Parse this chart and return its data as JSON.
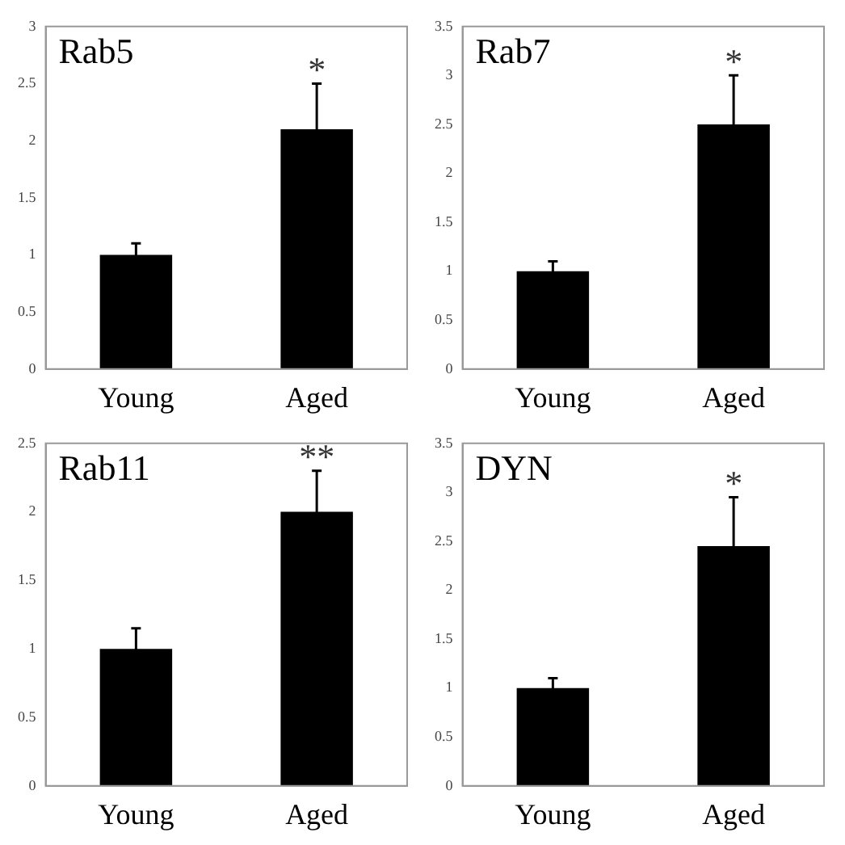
{
  "chart_data": [
    {
      "type": "bar",
      "title": "Rab5",
      "categories": [
        "Young",
        "Aged"
      ],
      "values": [
        1,
        2.1
      ],
      "errors": [
        0.1,
        0.4
      ],
      "color": "#000000",
      "ylim": [
        0,
        3
      ],
      "yticks": [
        0,
        0.5,
        1,
        1.5,
        2,
        2.5,
        3
      ],
      "grid": false,
      "legend": false,
      "annotations": [
        {
          "text": "*",
          "x": "Aged",
          "y": 2.5
        }
      ]
    },
    {
      "type": "bar",
      "title": "Rab7",
      "categories": [
        "Young",
        "Aged"
      ],
      "values": [
        1,
        2.5
      ],
      "errors": [
        0.1,
        0.5
      ],
      "color": "#000000",
      "ylim": [
        0,
        3.5
      ],
      "yticks": [
        0,
        0.5,
        1,
        1.5,
        2,
        2.5,
        3,
        3.5
      ],
      "grid": false,
      "legend": false,
      "annotations": [
        {
          "text": "*",
          "x": "Aged",
          "y": 3
        }
      ]
    },
    {
      "type": "bar",
      "title": "Rab11",
      "categories": [
        "Young",
        "Aged"
      ],
      "values": [
        1,
        2
      ],
      "errors": [
        0.15,
        0.3
      ],
      "color": "#000000",
      "ylim": [
        0,
        2.5
      ],
      "yticks": [
        0,
        0.5,
        1,
        1.5,
        2,
        2.5
      ],
      "grid": false,
      "legend": false,
      "annotations": [
        {
          "text": "**",
          "x": "Aged",
          "y": 2.3
        }
      ]
    },
    {
      "type": "bar",
      "title": "DYN",
      "categories": [
        "Young",
        "Aged"
      ],
      "values": [
        1,
        2.45
      ],
      "errors": [
        0.1,
        0.5
      ],
      "color": "#000000",
      "ylim": [
        0,
        3.5
      ],
      "yticks": [
        0,
        0.5,
        1,
        1.5,
        2,
        2.5,
        3,
        3.5
      ],
      "grid": false,
      "legend": false,
      "annotations": [
        {
          "text": "*",
          "x": "Aged",
          "y": 2.95
        }
      ]
    }
  ]
}
